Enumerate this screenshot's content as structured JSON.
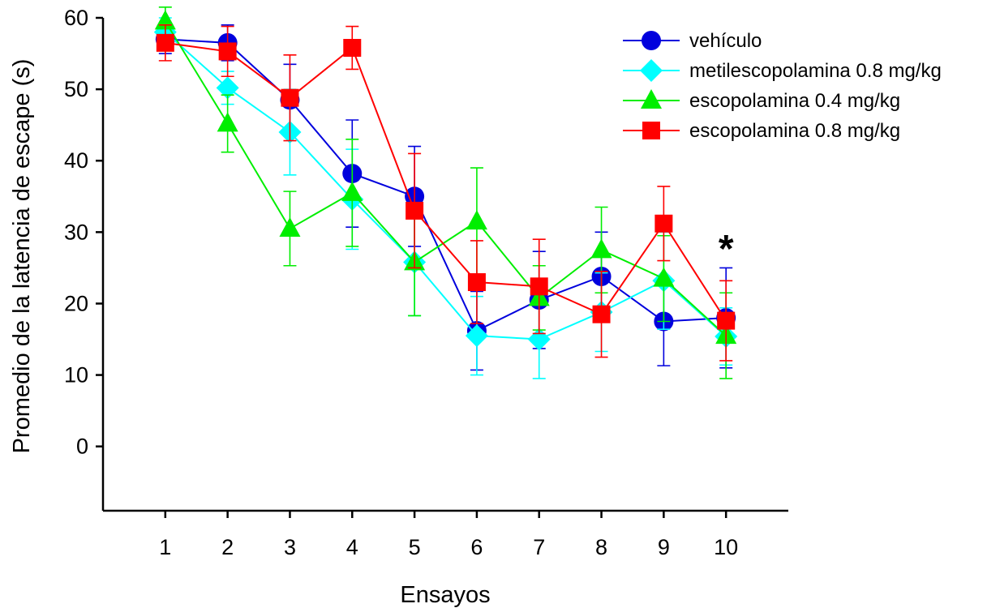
{
  "chart_data": {
    "type": "line",
    "title": "",
    "xlabel": "Ensayos",
    "ylabel": "Promedio de la latencia de escape (s)",
    "x": [
      1,
      2,
      3,
      4,
      5,
      6,
      7,
      8,
      9,
      10
    ],
    "x_tick_labels": [
      "1",
      "2",
      "3",
      "4",
      "5",
      "6",
      "7",
      "8",
      "9",
      "10"
    ],
    "xlim": [
      0,
      11
    ],
    "ylim": [
      -9,
      60
    ],
    "y_ticks": [
      0,
      10,
      20,
      30,
      40,
      50,
      60
    ],
    "y_tick_labels": [
      "0",
      "10",
      "20",
      "30",
      "40",
      "50",
      "60"
    ],
    "grid": false,
    "legend_position": "top-right",
    "error_bars": true,
    "series": [
      {
        "name": "vehículo",
        "color": "#0000dd",
        "marker": "circle",
        "values": [
          57.0,
          56.5,
          48.5,
          38.2,
          35.0,
          16.2,
          20.5,
          23.8,
          17.5,
          18.0
        ],
        "errors": [
          2.0,
          2.5,
          5.0,
          7.5,
          7.0,
          5.5,
          6.8,
          6.2,
          6.2,
          7.0
        ]
      },
      {
        "name": "metilescopolamina 0.8 mg/kg",
        "color": "#00ffff",
        "marker": "diamond",
        "values": [
          58.0,
          50.2,
          44.0,
          34.6,
          25.8,
          15.5,
          15.0,
          18.8,
          23.2,
          15.4
        ],
        "errors": [
          2.0,
          2.3,
          6.0,
          7.0,
          7.5,
          5.5,
          5.5,
          5.5,
          6.8,
          4.0
        ]
      },
      {
        "name": "escopolamina 0.4 mg/kg",
        "color": "#00ee00",
        "marker": "triangle",
        "values": [
          59.5,
          45.2,
          30.5,
          35.5,
          25.8,
          31.5,
          20.8,
          27.5,
          23.5,
          15.5
        ],
        "errors": [
          2.0,
          4.0,
          5.2,
          7.5,
          7.5,
          7.5,
          4.5,
          6.0,
          6.0,
          6.0
        ]
      },
      {
        "name": "escopolamina 0.8 mg/kg",
        "color": "#ff0000",
        "marker": "square",
        "values": [
          56.5,
          55.3,
          48.8,
          55.8,
          33.0,
          23.0,
          22.4,
          18.5,
          31.2,
          17.6
        ],
        "errors": [
          2.5,
          3.5,
          6.0,
          3.0,
          8.0,
          5.8,
          6.6,
          6.0,
          5.2,
          5.6
        ]
      }
    ],
    "annotations": [
      {
        "text": "*",
        "x": 10,
        "y": 29
      }
    ]
  }
}
